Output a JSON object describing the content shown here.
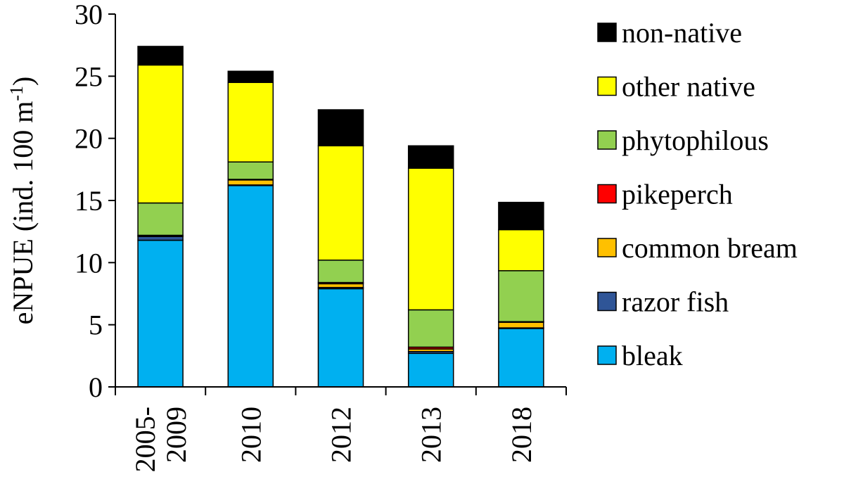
{
  "chart_data": {
    "type": "bar",
    "stacked": true,
    "categories": [
      "2005-2009",
      "2010",
      "2012",
      "2013",
      "2018"
    ],
    "category_lines": [
      [
        "2005-",
        "2009"
      ],
      [
        "2010"
      ],
      [
        "2012"
      ],
      [
        "2013"
      ],
      [
        "2018"
      ]
    ],
    "ylabel": "eNPUE (ind. 100 m",
    "ylabel_superscript": "-1",
    "ylabel_suffix": ")",
    "ylim": [
      0,
      30
    ],
    "yticks": [
      0,
      5,
      10,
      15,
      20,
      25,
      30
    ],
    "ytick_labels": [
      "0",
      "5",
      "10",
      "15",
      "20",
      "25",
      "30"
    ],
    "grid": false,
    "legend_position": "right",
    "series": [
      {
        "name": "bleak",
        "color": "#00b0f0",
        "values": [
          11.8,
          16.2,
          7.9,
          2.7,
          4.7
        ]
      },
      {
        "name": "razor fish",
        "color": "#2f5597",
        "values": [
          0.3,
          0.05,
          0.1,
          0.15,
          0.05
        ]
      },
      {
        "name": "common bream",
        "color": "#ffc000",
        "values": [
          0.05,
          0.4,
          0.3,
          0.2,
          0.45
        ]
      },
      {
        "name": "pikeperch",
        "color": "#ff0000",
        "values": [
          0.05,
          0.05,
          0.1,
          0.15,
          0.05
        ]
      },
      {
        "name": "phytophilous",
        "color": "#92d050",
        "values": [
          2.6,
          1.4,
          1.8,
          3.0,
          4.1
        ]
      },
      {
        "name": "other native",
        "color": "#ffff00",
        "values": [
          11.1,
          6.4,
          9.2,
          11.4,
          3.3
        ]
      },
      {
        "name": "non-native",
        "color": "#000000",
        "values": [
          1.5,
          0.9,
          2.9,
          1.8,
          2.2
        ]
      }
    ]
  }
}
